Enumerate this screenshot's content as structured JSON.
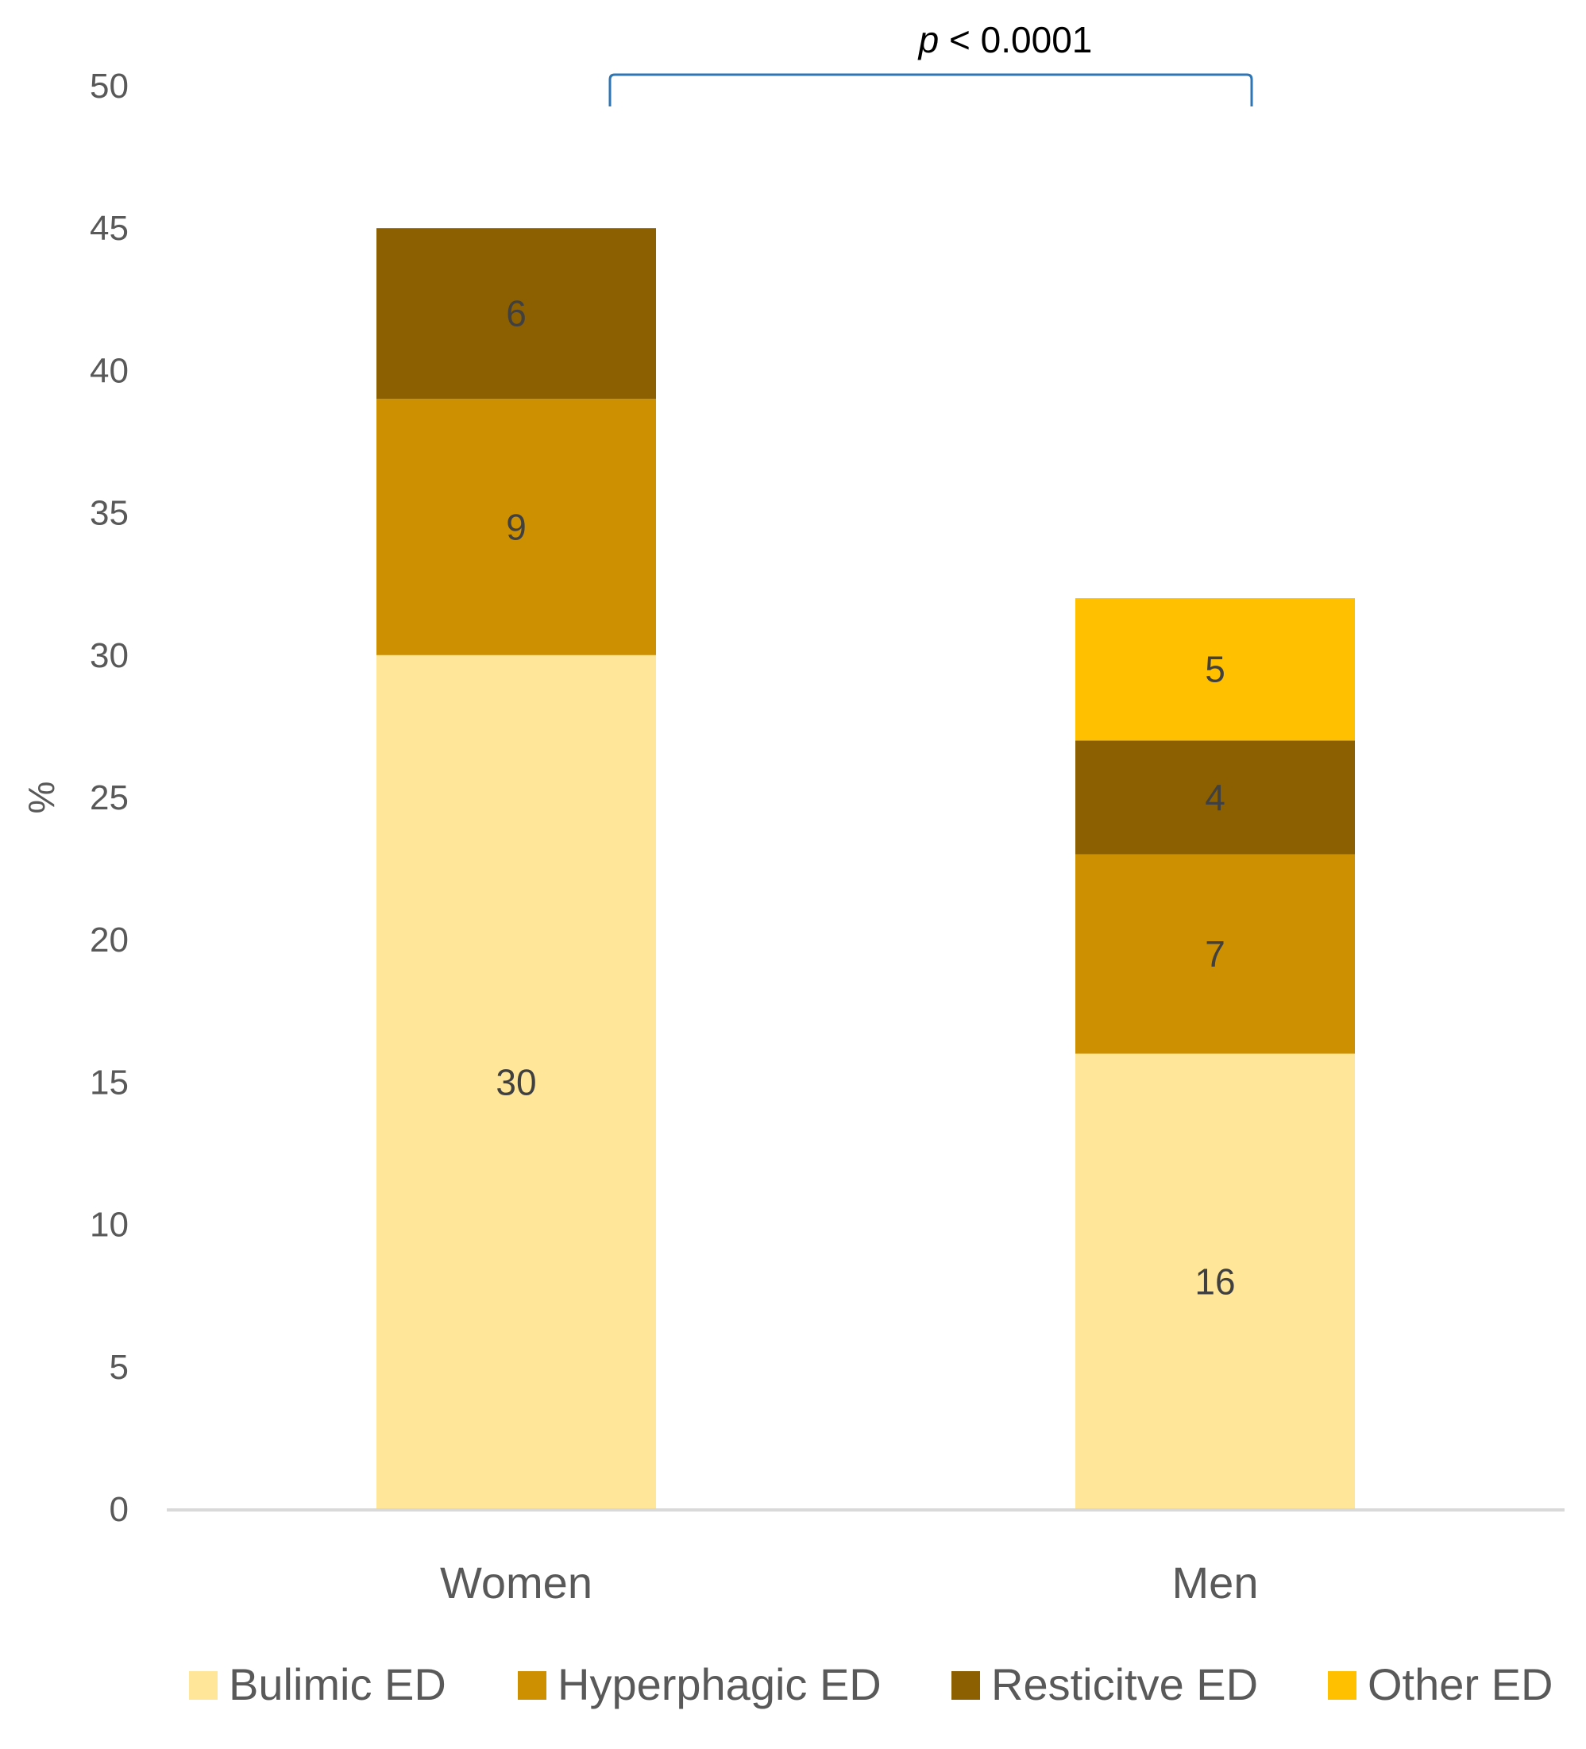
{
  "chart_data": {
    "type": "bar",
    "stacked": true,
    "categories": [
      "Women",
      "Men"
    ],
    "series": [
      {
        "name": "Bulimic ED",
        "values": [
          30,
          16
        ],
        "color": "#FFE699"
      },
      {
        "name": "Hyperphagic ED",
        "values": [
          9,
          7
        ],
        "color": "#CC9000"
      },
      {
        "name": "Resticitve ED",
        "values": [
          6,
          4
        ],
        "color": "#8C5F00"
      },
      {
        "name": "Other ED",
        "values": [
          0,
          5
        ],
        "color": "#FFC000"
      }
    ],
    "ylabel": "%",
    "ylim": [
      0,
      50
    ],
    "yticks": [
      0,
      5,
      10,
      15,
      20,
      25,
      30,
      35,
      40,
      45,
      50
    ],
    "grid": false,
    "legend": "bottom",
    "annotation": {
      "italic": "p",
      "rest": " < 0.0001",
      "between": [
        "Women",
        "Men"
      ],
      "bracket_color": "#2E75B6"
    }
  }
}
